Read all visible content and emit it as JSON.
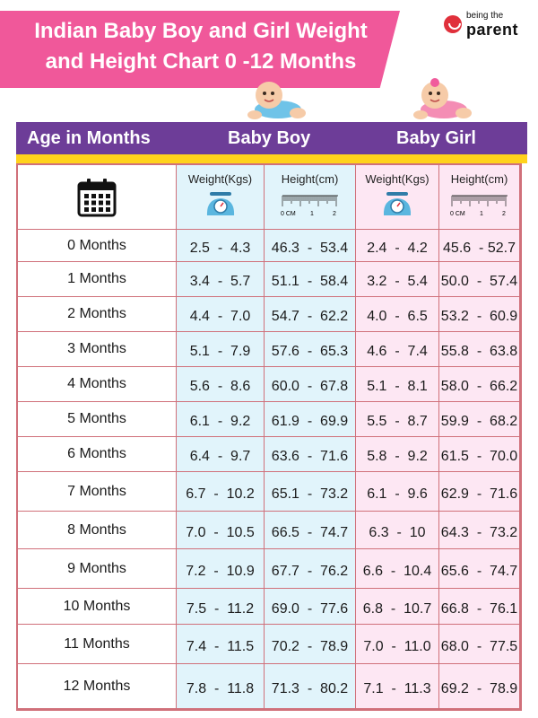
{
  "title": {
    "line1": "Indian Baby Boy and Girl Weight",
    "line2": "and Height Chart 0 -12 Months",
    "banner_color": "#f0589a"
  },
  "brand": {
    "small": "being the",
    "big": "parent"
  },
  "header": {
    "age": "Age in Months",
    "boy": "Baby Boy",
    "girl": "Baby Girl",
    "band_color": "#6d3d98",
    "accent_color": "#ffd21c"
  },
  "subheaders": {
    "boy_weight": "Weight(Kgs)",
    "boy_height": "Height(cm)",
    "girl_weight": "Weight(Kgs)",
    "girl_height": "Height(cm)",
    "ruler_labels": [
      "0 CM",
      "1",
      "2"
    ]
  },
  "icons": [
    "calendar-icon",
    "scale-icon",
    "ruler-icon"
  ],
  "colors": {
    "boy_fill": "#e1f4fb",
    "girl_fill": "#fde7f3",
    "border": "#d0707a"
  },
  "chart_data": {
    "type": "table",
    "title": "Indian Baby Boy and Girl Weight and Height Chart 0 -12 Months",
    "columns": [
      "Age in Months",
      "Baby Boy Weight(Kgs)",
      "Baby Boy Height(cm)",
      "Baby Girl Weight(Kgs)",
      "Baby Girl Height(cm)"
    ],
    "rows": [
      [
        "0 Months",
        "2.5  -  4.3",
        "46.3  -  53.4",
        "2.4  -  4.2",
        "45.6  - 52.7"
      ],
      [
        "1 Months",
        "3.4  -  5.7",
        "51.1  -  58.4",
        "3.2  -  5.4",
        "50.0  -  57.4"
      ],
      [
        "2 Months",
        "4.4  -  7.0",
        "54.7  -  62.2",
        "4.0  -  6.5",
        "53.2  -  60.9"
      ],
      [
        "3 Months",
        "5.1  -  7.9",
        "57.6  -  65.3",
        "4.6  -  7.4",
        "55.8  -  63.8"
      ],
      [
        "4 Months",
        "5.6  -  8.6",
        "60.0  -  67.8",
        "5.1  -  8.1",
        "58.0  -  66.2"
      ],
      [
        "5 Months",
        "6.1  -  9.2",
        "61.9  -  69.9",
        "5.5  -  8.7",
        "59.9  -  68.2"
      ],
      [
        "6 Months",
        "6.4  -  9.7",
        "63.6  -  71.6",
        "5.8  -  9.2",
        "61.5  -  70.0"
      ],
      [
        "7 Months",
        "6.7  -  10.2",
        "65.1  -  73.2",
        "6.1  -  9.6",
        "62.9  -  71.6"
      ],
      [
        "8 Months",
        "7.0  -  10.5",
        "66.5  -  74.7",
        "6.3  -  10",
        "64.3  -  73.2"
      ],
      [
        "9 Months",
        "7.2  -  10.9",
        "67.7  -  76.2",
        "6.6  -  10.4",
        "65.6  -  74.7"
      ],
      [
        "10 Months",
        "7.5  -  11.2",
        "69.0  -  77.6",
        "6.8  -  10.7",
        "66.8  -  76.1"
      ],
      [
        "11 Months",
        "7.4  -  11.5",
        "70.2  -  78.9",
        "7.0  -  11.0",
        "68.0  -  77.5"
      ],
      [
        "12 Months",
        "7.8  -  11.8",
        "71.3  -  80.2",
        "7.1  -  11.3",
        "69.2  -  78.9"
      ]
    ]
  }
}
